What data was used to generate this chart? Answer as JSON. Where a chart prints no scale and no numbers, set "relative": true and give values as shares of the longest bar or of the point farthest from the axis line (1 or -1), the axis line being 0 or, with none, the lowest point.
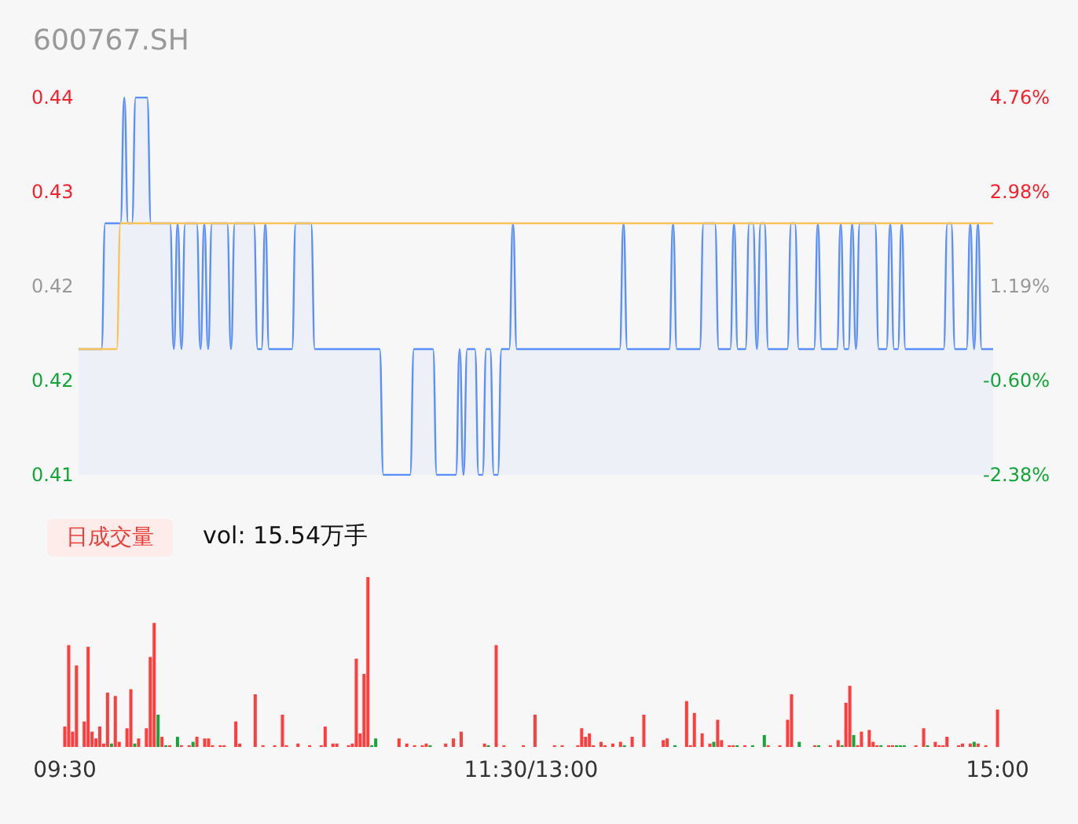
{
  "chart_data": [
    {
      "type": "line",
      "title": "600767.SH",
      "categories": [
        null,
        null,
        null,
        null,
        null,
        null,
        null,
        null,
        null,
        null,
        null,
        null,
        null,
        null,
        null,
        null,
        null,
        null,
        null,
        null,
        null,
        null,
        null,
        null,
        null,
        null,
        null,
        null,
        null,
        null,
        null,
        null,
        null,
        null,
        null,
        null,
        null,
        null,
        null,
        null,
        null,
        null,
        null,
        null,
        null,
        null,
        null,
        null,
        null,
        null,
        null,
        null,
        null,
        null,
        null,
        null,
        null,
        null,
        null,
        null,
        null,
        null,
        null,
        null,
        null,
        null,
        null,
        null,
        null,
        null,
        null,
        null,
        null,
        null,
        null,
        null,
        null,
        null,
        null,
        null,
        null,
        null,
        null,
        null,
        null,
        null,
        null,
        null,
        null,
        null,
        null,
        null,
        null,
        null,
        null,
        null,
        null,
        null,
        null,
        null,
        null,
        null,
        null,
        null,
        null,
        null,
        null,
        null,
        null,
        null,
        null,
        null,
        null,
        null,
        null,
        null,
        null,
        null,
        null,
        null,
        null,
        null,
        null,
        null,
        null,
        null,
        null,
        null,
        null,
        null,
        null,
        null,
        null,
        null,
        null,
        null,
        null,
        null,
        null,
        null,
        null,
        null,
        null,
        null,
        null,
        null,
        null,
        null,
        null,
        null,
        null,
        null,
        null,
        null,
        null,
        null,
        null,
        null,
        null,
        null,
        null,
        null,
        null,
        null,
        null,
        null,
        null,
        null,
        null,
        null,
        null,
        null,
        null,
        null,
        null,
        null,
        null,
        null,
        null,
        null,
        null,
        null,
        null,
        null,
        null,
        null,
        null,
        null,
        null,
        null,
        null,
        null,
        null,
        null,
        null,
        null,
        null,
        null,
        null,
        null,
        null,
        null,
        null,
        null,
        null,
        null,
        null,
        null,
        null,
        null,
        null,
        null,
        null,
        null,
        null,
        null,
        null,
        null,
        null,
        null,
        null,
        null,
        null,
        null,
        null,
        null,
        null,
        null,
        null,
        null,
        null,
        null,
        null,
        null,
        null,
        null,
        null,
        null,
        null,
        null,
        null
      ],
      "series": [
        {
          "type": "area",
          "color": "#5b8ff9",
          "values": [
            0.42,
            0.42,
            0.42,
            0.42,
            0.42,
            0.42,
            0.42,
            0.43,
            0.43,
            0.43,
            0.43,
            0.43,
            0.44,
            0.43,
            0.43,
            0.44,
            0.44,
            0.44,
            0.44,
            0.43,
            0.43,
            0.43,
            0.43,
            0.43,
            0.43,
            0.42,
            0.43,
            0.42,
            0.43,
            0.43,
            0.43,
            0.43,
            0.42,
            0.43,
            0.42,
            0.43,
            0.43,
            0.43,
            0.43,
            0.43,
            0.42,
            0.43,
            0.43,
            0.43,
            0.43,
            0.43,
            0.43,
            0.42,
            0.42,
            0.43,
            0.42,
            0.42,
            0.42,
            0.42,
            0.42,
            0.42,
            0.42,
            0.43,
            0.43,
            0.43,
            0.43,
            0.43,
            0.42,
            0.42,
            0.42,
            0.42,
            0.42,
            0.42,
            0.42,
            0.42,
            0.42,
            0.42,
            0.42,
            0.42,
            0.42,
            0.42,
            0.42,
            0.42,
            0.42,
            0.42,
            0.41,
            0.41,
            0.41,
            0.41,
            0.41,
            0.41,
            0.41,
            0.41,
            0.42,
            0.42,
            0.42,
            0.42,
            0.42,
            0.42,
            0.41,
            0.41,
            0.41,
            0.41,
            0.41,
            0.41,
            0.42,
            0.41,
            0.42,
            0.42,
            0.42,
            0.41,
            0.41,
            0.42,
            0.42,
            0.41,
            0.41,
            0.42,
            0.42,
            0.42,
            0.43,
            0.42,
            0.42,
            0.42,
            0.42,
            0.42,
            0.42,
            0.42,
            0.42,
            0.42,
            0.42,
            0.42,
            0.42,
            0.42,
            0.42,
            0.42,
            0.42,
            0.42,
            0.42,
            0.42,
            0.42,
            0.42,
            0.42,
            0.42,
            0.42,
            0.42,
            0.42,
            0.42,
            0.42,
            0.43,
            0.42,
            0.42,
            0.42,
            0.42,
            0.42,
            0.42,
            0.42,
            0.42,
            0.42,
            0.42,
            0.42,
            0.42,
            0.43,
            0.42,
            0.42,
            0.42,
            0.42,
            0.42,
            0.42,
            0.42,
            0.43,
            0.43,
            0.43,
            0.43,
            0.42,
            0.42,
            0.42,
            0.42,
            0.43,
            0.42,
            0.42,
            0.42,
            0.43,
            0.43,
            0.42,
            0.43,
            0.43,
            0.42,
            0.42,
            0.42,
            0.42,
            0.42,
            0.42,
            0.43,
            0.43,
            0.42,
            0.42,
            0.42,
            0.42,
            0.42,
            0.43,
            0.42,
            0.42,
            0.42,
            0.42,
            0.42,
            0.43,
            0.42,
            0.42,
            0.43,
            0.42,
            0.43,
            0.43,
            0.43,
            0.43,
            0.43,
            0.42,
            0.42,
            0.42,
            0.43,
            0.42,
            0.42,
            0.43,
            0.42,
            0.42,
            0.42,
            0.42,
            0.42,
            0.42,
            0.42,
            0.42,
            0.42,
            0.42,
            0.42,
            0.43,
            0.43,
            0.42,
            0.42,
            0.42,
            0.42,
            0.43,
            0.42,
            0.43,
            0.42,
            0.42,
            0.42,
            0.42
          ]
        },
        {
          "color": "#f8c35a",
          "values": [
            0.42,
            0.42,
            0.42,
            0.42,
            0.42,
            0.42,
            0.42,
            0.42,
            0.42,
            0.42,
            0.42,
            0.43,
            0.43,
            0.43,
            0.43,
            0.43,
            0.43,
            0.43,
            0.43,
            0.43,
            0.43,
            0.43,
            0.43,
            0.43,
            0.43,
            0.43,
            0.43,
            0.43,
            0.43,
            0.43,
            0.43,
            0.43,
            0.43,
            0.43,
            0.43,
            0.43,
            0.43,
            0.43,
            0.43,
            0.43,
            0.43,
            0.43,
            0.43,
            0.43,
            0.43,
            0.43,
            0.43,
            0.43,
            0.43,
            0.43,
            0.43,
            0.43,
            0.43,
            0.43,
            0.43,
            0.43,
            0.43,
            0.43,
            0.43,
            0.43,
            0.43,
            0.43,
            0.43,
            0.43,
            0.43,
            0.43,
            0.43,
            0.43,
            0.43,
            0.43,
            0.43,
            0.43,
            0.43,
            0.43,
            0.43,
            0.43,
            0.43,
            0.43,
            0.43,
            0.43,
            0.43,
            0.43,
            0.43,
            0.43,
            0.43,
            0.43,
            0.43,
            0.43,
            0.43,
            0.43,
            0.43,
            0.43,
            0.43,
            0.43,
            0.43,
            0.43,
            0.43,
            0.43,
            0.43,
            0.43,
            0.43,
            0.43,
            0.43,
            0.43,
            0.43,
            0.43,
            0.43,
            0.43,
            0.43,
            0.43,
            0.43,
            0.43,
            0.43,
            0.43,
            0.43,
            0.43,
            0.43,
            0.43,
            0.43,
            0.43,
            0.43,
            0.43,
            0.43,
            0.43,
            0.43,
            0.43,
            0.43,
            0.43,
            0.43,
            0.43,
            0.43,
            0.43,
            0.43,
            0.43,
            0.43,
            0.43,
            0.43,
            0.43,
            0.43,
            0.43,
            0.43,
            0.43,
            0.43,
            0.43,
            0.43,
            0.43,
            0.43,
            0.43,
            0.43,
            0.43,
            0.43,
            0.43,
            0.43,
            0.43,
            0.43,
            0.43,
            0.43,
            0.43,
            0.43,
            0.43,
            0.43,
            0.43,
            0.43,
            0.43,
            0.43,
            0.43,
            0.43,
            0.43,
            0.43,
            0.43,
            0.43,
            0.43,
            0.43,
            0.43,
            0.43,
            0.43,
            0.43,
            0.43,
            0.43,
            0.43,
            0.43,
            0.43,
            0.43,
            0.43,
            0.43,
            0.43,
            0.43,
            0.43,
            0.43,
            0.43,
            0.43,
            0.43,
            0.43,
            0.43,
            0.43,
            0.43,
            0.43,
            0.43,
            0.43,
            0.43,
            0.43,
            0.43,
            0.43,
            0.43,
            0.43,
            0.43,
            0.43,
            0.43,
            0.43,
            0.43,
            0.43,
            0.43,
            0.43,
            0.43,
            0.43,
            0.43,
            0.43,
            0.43,
            0.43,
            0.43,
            0.43,
            0.43,
            0.43,
            0.43,
            0.43,
            0.43,
            0.43,
            0.43,
            0.43,
            0.43,
            0.43,
            0.43,
            0.43,
            0.43,
            0.43,
            0.43,
            0.43,
            0.43,
            0.43,
            0.43,
            0.43
          ]
        }
      ],
      "ylim": [
        0.41,
        0.44
      ],
      "yticks": [
        0.41,
        {
          "value": 0.4175,
          "label": "0.42"
        },
        {
          "value": 0.425,
          "label": "0.42"
        },
        {
          "value": 0.4325,
          "label": "0.43"
        },
        0.44
      ],
      "y2lim": [
        -2.38,
        4.76
      ],
      "y2ticks": [
        {
          "value": -2.38,
          "label": "-2.38%"
        },
        {
          "value": -0.6,
          "label": "-0.60%"
        },
        {
          "value": 1.19,
          "label": "1.19%"
        },
        {
          "value": 2.98,
          "label": "2.98%"
        },
        {
          "value": 4.76,
          "label": "4.76%"
        }
      ],
      "tick_labels": "y",
      "grid": false,
      "line_style": "solid"
    },
    {
      "type": "bar",
      "relative": true,
      "annotations": [
        "日成交量",
        "vol: 15.54万手"
      ],
      "categories": [
        "09:30",
        null,
        null,
        null,
        null,
        null,
        null,
        null,
        null,
        null,
        null,
        null,
        null,
        null,
        null,
        null,
        null,
        null,
        null,
        null,
        null,
        null,
        null,
        null,
        null,
        null,
        null,
        null,
        null,
        null,
        null,
        null,
        null,
        null,
        null,
        null,
        null,
        null,
        null,
        null,
        null,
        null,
        null,
        null,
        null,
        null,
        null,
        null,
        null,
        null,
        null,
        null,
        null,
        null,
        null,
        null,
        null,
        null,
        null,
        null,
        null,
        null,
        null,
        null,
        null,
        null,
        null,
        null,
        null,
        null,
        null,
        null,
        null,
        null,
        null,
        null,
        null,
        null,
        null,
        null,
        null,
        null,
        null,
        null,
        null,
        null,
        null,
        null,
        null,
        null,
        null,
        null,
        null,
        null,
        null,
        null,
        null,
        null,
        null,
        null,
        null,
        null,
        null,
        null,
        null,
        null,
        null,
        null,
        null,
        null,
        null,
        null,
        null,
        null,
        null,
        null,
        null,
        null,
        null,
        null,
        "11:30/13:00",
        null,
        null,
        null,
        null,
        null,
        null,
        null,
        null,
        null,
        null,
        null,
        null,
        null,
        null,
        null,
        null,
        null,
        null,
        null,
        null,
        null,
        null,
        null,
        null,
        null,
        null,
        null,
        null,
        null,
        null,
        null,
        null,
        null,
        null,
        null,
        null,
        null,
        null,
        null,
        null,
        null,
        null,
        null,
        null,
        null,
        null,
        null,
        null,
        null,
        null,
        null,
        null,
        null,
        null,
        null,
        null,
        null,
        null,
        null,
        null,
        null,
        null,
        null,
        null,
        null,
        null,
        null,
        null,
        null,
        null,
        null,
        null,
        null,
        null,
        null,
        null,
        null,
        null,
        null,
        null,
        null,
        null,
        null,
        null,
        null,
        null,
        null,
        null,
        null,
        null,
        null,
        null,
        null,
        null,
        null,
        null,
        null,
        null,
        null,
        null,
        null,
        null,
        null,
        null,
        null,
        null,
        null,
        null,
        null,
        null,
        null,
        null,
        null,
        null,
        null,
        null,
        null,
        null,
        null,
        "15:00"
      ],
      "values": [
        0.12,
        0.6,
        0.09,
        0.48,
        null,
        0.15,
        0.59,
        0.09,
        0.05,
        0.12,
        0.02,
        0.32,
        0.02,
        0.3,
        0.03,
        null,
        0.11,
        0.34,
        0.02,
        0.05,
        null,
        0.11,
        0.53,
        0.73,
        0.19,
        0.06,
        0.01,
        0.01,
        null,
        0.06,
        0.01,
        null,
        0.01,
        0.03,
        0.06,
        null,
        0.05,
        0.05,
        0.01,
        null,
        0.01,
        0.01,
        null,
        null,
        0.15,
        0.02,
        null,
        null,
        null,
        0.31,
        null,
        0.01,
        null,
        null,
        0.01,
        null,
        0.19,
        0.01,
        null,
        null,
        0.02,
        null,
        null,
        0.01,
        null,
        null,
        0.01,
        0.12,
        null,
        0.02,
        0.02,
        null,
        null,
        0.01,
        0.02,
        0.52,
        0.08,
        0.43,
        1,
        0.01,
        0.05,
        null,
        null,
        null,
        null,
        null,
        0.05,
        null,
        0.02,
        null,
        0.01,
        null,
        0.01,
        0.02,
        0.01,
        null,
        null,
        null,
        0.02,
        null,
        0.05,
        null,
        0.09,
        null,
        null,
        null,
        null,
        null,
        0.02,
        0.01,
        null,
        0.6,
        null,
        0.01,
        null,
        null,
        null,
        null,
        0.01,
        null,
        null,
        0.19,
        null,
        null,
        null,
        null,
        0.01,
        null,
        0.01,
        null,
        null,
        null,
        0.01,
        0.11,
        0.06,
        0.08,
        0.01,
        null,
        0.03,
        0.01,
        null,
        0.02,
        null,
        0.03,
        0.01,
        null,
        0.06,
        null,
        null,
        0.19,
        null,
        null,
        null,
        null,
        0.04,
        0.05,
        null,
        0.01,
        null,
        null,
        0.27,
        0.01,
        0.2,
        null,
        0.08,
        null,
        0.02,
        0.03,
        0.16,
        0.04,
        null,
        0.01,
        0.01,
        0.01,
        null,
        0.01,
        null,
        0.01,
        null,
        null,
        0.07,
        0.01,
        null,
        null,
        0.01,
        null,
        0.16,
        0.31,
        null,
        0.03,
        null,
        null,
        null,
        0.01,
        0.01,
        null,
        null,
        0.01,
        null,
        0.04,
        0.01,
        0.26,
        0.36,
        0.07,
        0.01,
        0.09,
        null,
        0.1,
        0.03,
        0.01,
        0.01,
        null,
        0.01,
        0.01,
        0.01,
        0.01,
        0.01,
        null,
        null,
        0.01,
        null,
        0.11,
        0.01,
        null,
        0.03,
        0.01,
        0.01,
        0.06,
        null,
        null,
        0.01,
        0.02,
        null,
        0.02,
        0.03,
        0.02,
        null,
        0.01,
        null,
        null,
        0.22
      ],
      "colors": [
        "#ff3d3d",
        "#ff3d3d",
        "#ff3d3d",
        "#ff3d3d",
        "#ff3d3d",
        "#ff3d3d",
        "#ff3d3d",
        "#ff3d3d",
        "#ff3d3d",
        "#ff3d3d",
        "#ff3d3d",
        "#ff3d3d",
        "#1aa339",
        "#ff3d3d",
        "#ff3d3d",
        "#ff3d3d",
        "#ff3d3d",
        "#ff3d3d",
        "#1aa339",
        "#ff3d3d",
        "#ff3d3d",
        "#ff3d3d",
        "#ff3d3d",
        "#ff3d3d",
        "#1aa339",
        "#ff3d3d",
        "#1aa339",
        "#ff3d3d",
        "#ff3d3d",
        "#1aa339",
        "#ff3d3d",
        "#ff3d3d",
        "#ff3d3d",
        "#1aa339",
        "#ff3d3d",
        "#ff3d3d",
        "#ff3d3d",
        "#ff3d3d",
        "#ff3d3d",
        "#ff3d3d",
        "#ff3d3d",
        "#ff3d3d",
        "#ff3d3d",
        "#ff3d3d",
        "#ff3d3d",
        "#ff3d3d",
        "#ff3d3d",
        "#ff3d3d",
        "#ff3d3d",
        "#ff3d3d",
        "#ff3d3d",
        "#ff3d3d",
        "#ff3d3d",
        "#ff3d3d",
        "#ff3d3d",
        "#ff3d3d",
        "#ff3d3d",
        "#ff3d3d",
        "#ff3d3d",
        "#ff3d3d",
        "#ff3d3d",
        "#ff3d3d",
        "#ff3d3d",
        "#ff3d3d",
        "#ff3d3d",
        "#ff3d3d",
        "#ff3d3d",
        "#ff3d3d",
        "#ff3d3d",
        "#ff3d3d",
        "#ff3d3d",
        "#ff3d3d",
        "#ff3d3d",
        "#ff3d3d",
        "#ff3d3d",
        "#ff3d3d",
        "#ff3d3d",
        "#ff3d3d",
        "#ff3d3d",
        "#1aa339",
        "#1aa339",
        "#ff3d3d",
        "#ff3d3d",
        "#ff3d3d",
        "#ff3d3d",
        "#ff3d3d",
        "#ff3d3d",
        "#ff3d3d",
        "#ff3d3d",
        "#ff3d3d",
        "#ff3d3d",
        "#ff3d3d",
        "#ff3d3d",
        "#ff3d3d",
        "#1aa339",
        "#ff3d3d",
        "#ff3d3d",
        "#ff3d3d",
        "#ff3d3d",
        "#ff3d3d",
        "#ff3d3d",
        "#ff3d3d",
        "#ff3d3d",
        "#ff3d3d",
        "#ff3d3d",
        "#ff3d3d",
        "#ff3d3d",
        "#ff3d3d",
        "#ff3d3d",
        "#1aa339",
        "#ff3d3d",
        "#ff3d3d",
        "#ff3d3d",
        "#ff3d3d",
        "#ff3d3d",
        "#ff3d3d",
        "#ff3d3d",
        "#ff3d3d",
        "#ff3d3d",
        "#ff3d3d",
        "#ff3d3d",
        "#ff3d3d",
        "#ff3d3d",
        "#ff3d3d",
        "#ff3d3d",
        "#ff3d3d",
        "#ff3d3d",
        "#ff3d3d",
        "#ff3d3d",
        "#ff3d3d",
        "#ff3d3d",
        "#ff3d3d",
        "#ff3d3d",
        "#ff3d3d",
        "#ff3d3d",
        "#ff3d3d",
        "#ff3d3d",
        "#ff3d3d",
        "#ff3d3d",
        "#ff3d3d",
        "#ff3d3d",
        "#ff3d3d",
        "#ff3d3d",
        "#ff3d3d",
        "#1aa339",
        "#ff3d3d",
        "#ff3d3d",
        "#ff3d3d",
        "#ff3d3d",
        "#ff3d3d",
        "#ff3d3d",
        "#ff3d3d",
        "#ff3d3d",
        "#ff3d3d",
        "#ff3d3d",
        "#ff3d3d",
        "#ff3d3d",
        "#1aa339",
        "#ff3d3d",
        "#ff3d3d",
        "#ff3d3d",
        "#ff3d3d",
        "#ff3d3d",
        "#ff3d3d",
        "#ff3d3d",
        "#ff3d3d",
        "#ff3d3d",
        "#1aa339",
        "#ff3d3d",
        "#ff3d3d",
        "#ff3d3d",
        "#ff3d3d",
        "#ff3d3d",
        "#1aa339",
        "#ff3d3d",
        "#ff3d3d",
        "#ff3d3d",
        "#1aa339",
        "#ff3d3d",
        "#ff3d3d",
        "#1aa339",
        "#ff3d3d",
        "#ff3d3d",
        "#ff3d3d",
        "#ff3d3d",
        "#ff3d3d",
        "#ff3d3d",
        "#ff3d3d",
        "#ff3d3d",
        "#1aa339",
        "#ff3d3d",
        "#ff3d3d",
        "#ff3d3d",
        "#ff3d3d",
        "#1aa339",
        "#ff3d3d",
        "#ff3d3d",
        "#ff3d3d",
        "#ff3d3d",
        "#ff3d3d",
        "#1aa339",
        "#ff3d3d",
        "#ff3d3d",
        "#1aa339",
        "#ff3d3d",
        "#ff3d3d",
        "#ff3d3d",
        "#ff3d3d",
        "#ff3d3d",
        "#ff3d3d",
        "#1aa339",
        "#ff3d3d",
        "#ff3d3d",
        "#ff3d3d",
        "#1aa339",
        "#1aa339",
        "#1aa339",
        "#ff3d3d",
        "#ff3d3d",
        "#ff3d3d",
        "#ff3d3d",
        "#ff3d3d",
        "#1aa339",
        "#ff3d3d",
        "#ff3d3d",
        "#ff3d3d",
        "#ff3d3d",
        "#ff3d3d",
        "#ff3d3d",
        "#ff3d3d",
        "#ff3d3d",
        "#ff3d3d",
        "#ff3d3d",
        "#ff3d3d",
        "#1aa339",
        "#ff3d3d",
        "#ff3d3d",
        "#ff3d3d",
        "#ff3d3d",
        "#ff3d3d",
        "#ff3d3d"
      ],
      "grid": false
    }
  ]
}
